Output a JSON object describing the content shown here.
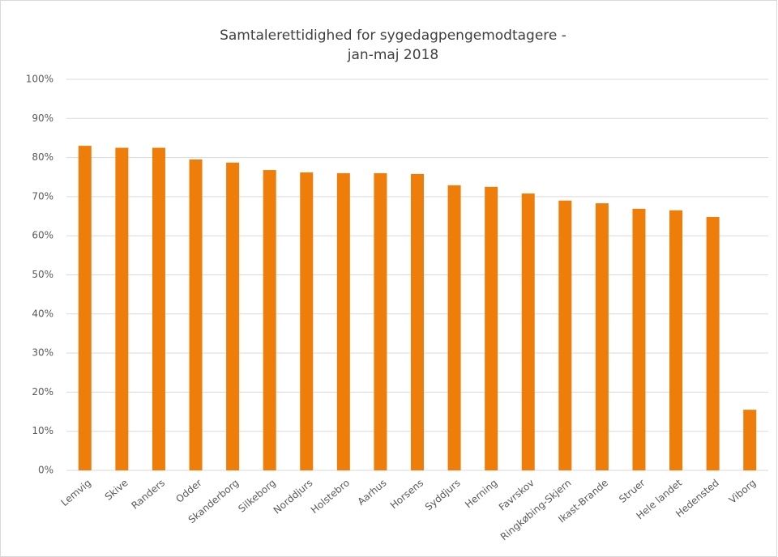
{
  "chart_data": {
    "type": "bar",
    "title": [
      "Samtalerettidighed for sygedagpengemodtagere -",
      "jan-maj 2018"
    ],
    "categories": [
      "Lemvig",
      "Skive",
      "Randers",
      "Odder",
      "Skanderborg",
      "Silkeborg",
      "Norddjurs",
      "Holstebro",
      "Aarhus",
      "Horsens",
      "Syddjurs",
      "Herning",
      "Favrskov",
      "Ringkøbing-Skjern",
      "Ikast-Brande",
      "Struer",
      "Hele landet",
      "Hedensted",
      "Viborg"
    ],
    "values": [
      83,
      82.5,
      82.5,
      79.5,
      78.7,
      76.8,
      76.2,
      76,
      76,
      75.8,
      72.9,
      72.5,
      70.8,
      69,
      68.3,
      66.9,
      66.5,
      64.8,
      15.5
    ],
    "color": "#ef7d0a",
    "ylim": [
      0,
      100
    ],
    "yticks": [
      {
        "value": 0,
        "label": "0%"
      },
      {
        "value": 10,
        "label": "10%"
      },
      {
        "value": 20,
        "label": "20%"
      },
      {
        "value": 30,
        "label": "30%"
      },
      {
        "value": 40,
        "label": "40%"
      },
      {
        "value": 50,
        "label": "50%"
      },
      {
        "value": 60,
        "label": "60%"
      },
      {
        "value": 70,
        "label": "70%"
      },
      {
        "value": 80,
        "label": "80%"
      },
      {
        "value": 90,
        "label": "90%"
      },
      {
        "value": 100,
        "label": "100%"
      }
    ],
    "grid": true
  }
}
